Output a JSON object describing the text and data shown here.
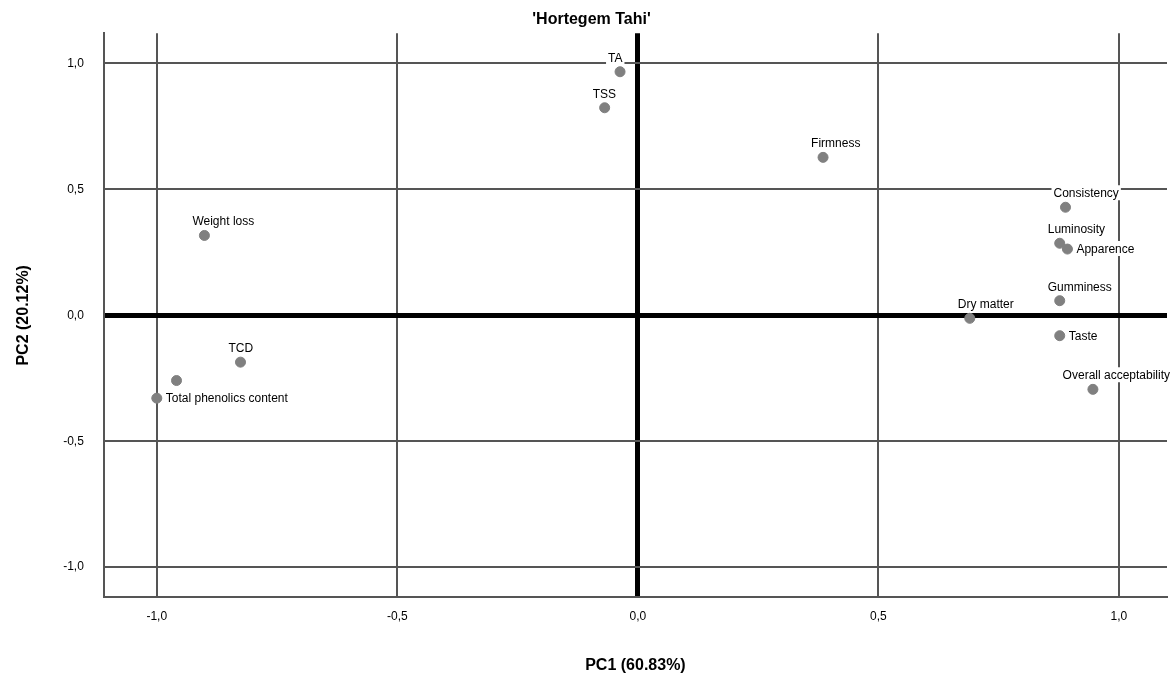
{
  "chart_data": {
    "type": "scatter",
    "title": "'Hortegem Tahi'",
    "xlabel": "PC1 (60.83%)",
    "ylabel": "PC2 (20.12%)",
    "x": [
      -0.037,
      -0.069,
      0.385,
      0.889,
      0.877,
      0.893,
      0.877,
      0.69,
      0.877,
      0.946,
      -0.901,
      -0.826,
      -0.959,
      -1.0
    ],
    "series": [
      {
        "color": "#808080",
        "values": [
          0.967,
          0.824,
          0.627,
          0.429,
          0.286,
          0.263,
          0.058,
          -0.012,
          -0.081,
          -0.294,
          0.317,
          -0.186,
          -0.259,
          -0.329
        ]
      }
    ],
    "annotations": [
      {
        "text": "TA",
        "x": -0.037,
        "y": 0.967
      },
      {
        "text": "TSS",
        "x": -0.069,
        "y": 0.824
      },
      {
        "text": "Firmness",
        "x": 0.385,
        "y": 0.627
      },
      {
        "text": "Consistency",
        "x": 0.889,
        "y": 0.429
      },
      {
        "text": "Luminosity",
        "x": 0.877,
        "y": 0.286
      },
      {
        "text": "Apparence",
        "x": 0.893,
        "y": 0.263
      },
      {
        "text": "Gumminess",
        "x": 0.877,
        "y": 0.058
      },
      {
        "text": "Dry matter",
        "x": 0.69,
        "y": -0.012
      },
      {
        "text": "Taste",
        "x": 0.877,
        "y": -0.081
      },
      {
        "text": "Overall acceptability",
        "x": 0.946,
        "y": -0.294
      },
      {
        "text": "Weight loss",
        "x": -0.901,
        "y": 0.317
      },
      {
        "text": "TCD",
        "x": -0.826,
        "y": -0.186
      },
      {
        "text": "Total phenolics content",
        "x": -1.0,
        "y": -0.329
      }
    ],
    "xlim": [
      -1.11,
      1.1
    ],
    "ylim": [
      -1.12,
      1.12
    ],
    "xticks": [
      {
        "value": -1,
        "label": "-1,0"
      },
      {
        "value": -0.5,
        "label": "-0,5"
      },
      {
        "value": 0,
        "label": "0,0"
      },
      {
        "value": 0.5,
        "label": "0,5"
      },
      {
        "value": 1,
        "label": "1,0"
      }
    ],
    "yticks": [
      {
        "value": -1,
        "label": "-1,0"
      },
      {
        "value": -0.5,
        "label": "-0,5"
      },
      {
        "value": 0,
        "label": "0,0"
      },
      {
        "value": 0.5,
        "label": "0,5"
      },
      {
        "value": 1,
        "label": "1,0"
      }
    ],
    "grid": true,
    "legend": false,
    "marker": "circle"
  }
}
